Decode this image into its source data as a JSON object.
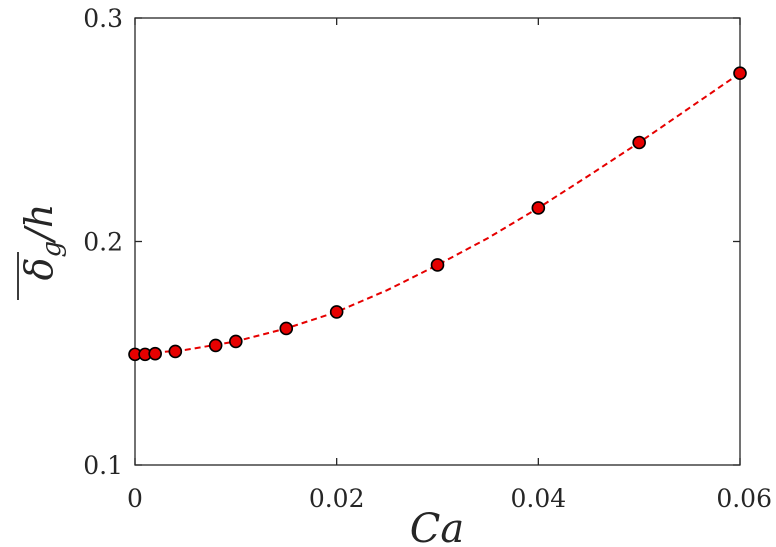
{
  "chart_data": {
    "type": "scatter",
    "title": "",
    "xlabel": "Ca",
    "ylabel_parts": {
      "symbol": "δ",
      "subscript": "g",
      "suffix": "/h"
    },
    "xlim": [
      0,
      0.06
    ],
    "ylim": [
      0.1,
      0.3
    ],
    "xticks": [
      0,
      0.02,
      0.04,
      0.06
    ],
    "xtick_labels": [
      "0",
      "0.02",
      "0.04",
      "0.06"
    ],
    "yticks": [
      0.1,
      0.2,
      0.3
    ],
    "ytick_labels": [
      "0.1",
      "0.2",
      "0.3"
    ],
    "grid": false,
    "series": [
      {
        "type": "scatter",
        "marker_color": "#e60000",
        "marker_edge": "#000000",
        "x": [
          0,
          0.001,
          0.002,
          0.004,
          0.008,
          0.01,
          0.015,
          0.02,
          0.03,
          0.04,
          0.05,
          0.06
        ],
        "y": [
          0.1495,
          0.1495,
          0.1498,
          0.1508,
          0.1535,
          0.1553,
          0.1611,
          0.1685,
          0.1895,
          0.215,
          0.2443,
          0.2753
        ]
      },
      {
        "type": "line",
        "style": "dashed",
        "color": "#e60000",
        "x": [
          0,
          0.005,
          0.01,
          0.015,
          0.02,
          0.025,
          0.03,
          0.035,
          0.04,
          0.045,
          0.05,
          0.055,
          0.06
        ],
        "y": [
          0.1495,
          0.1515,
          0.1553,
          0.1611,
          0.1685,
          0.1782,
          0.1895,
          0.2015,
          0.215,
          0.2295,
          0.2443,
          0.2598,
          0.2753
        ]
      }
    ]
  }
}
